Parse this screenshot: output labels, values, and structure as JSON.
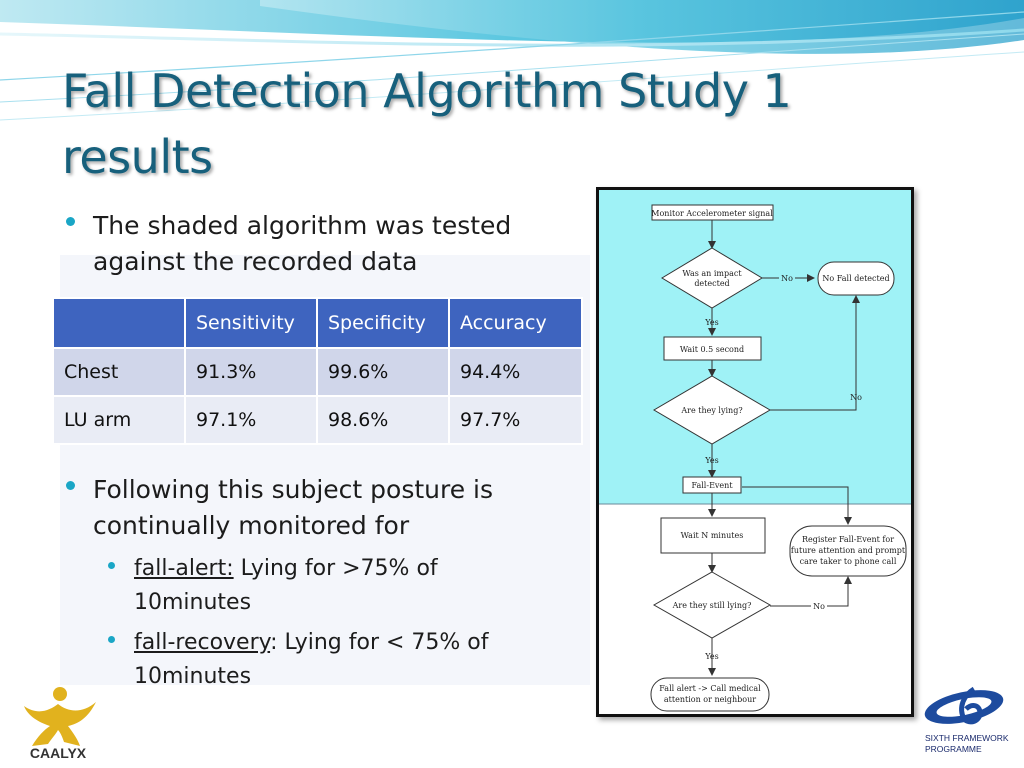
{
  "slide": {
    "title": "Fall Detection Algorithm Study 1 results",
    "bullets": [
      "The shaded algorithm was tested against the recorded data",
      "Following this subject posture is continually monitored for"
    ],
    "sub_bullets": [
      {
        "term": "fall-alert:",
        "rest": " Lying for >75% of 10minutes"
      },
      {
        "term": "fall-recovery",
        "rest": ": Lying for < 75% of 10minutes"
      }
    ]
  },
  "table": {
    "headers": [
      "",
      "Sensitivity",
      "Specificity",
      "Accuracy"
    ],
    "rows": [
      [
        "Chest",
        "91.3%",
        "99.6%",
        "94.4%"
      ],
      [
        "LU arm",
        "97.1%",
        "98.6%",
        "97.7%"
      ]
    ]
  },
  "flowchart": {
    "shaded_color": "#9ff2f6",
    "nodes": {
      "monitor": "Monitor Accelerometer signal",
      "impact_1": "Was an impact",
      "impact_2": "detected",
      "no_fall": "No Fall detected",
      "wait_half": "Wait 0.5 second",
      "lying": "Are they lying?",
      "fall_event": "Fall-Event",
      "wait_n": "Wait N minutes",
      "register_1": "Register Fall-Event for",
      "register_2": "future attention and prompt",
      "register_3": "care taker to phone call",
      "still_lying": "Are they still lying?",
      "alert_1": "Fall alert -> Call medical",
      "alert_2": "attention or neighbour"
    },
    "edges": {
      "no_1": "No",
      "yes_1": "Yes",
      "no_2": "No",
      "yes_2": "Yes",
      "no_3": "No",
      "yes_3": "Yes"
    }
  },
  "logos": {
    "left": "CAALYX",
    "right_1": "SIXTH FRAMEWORK",
    "right_2": "PROGRAMME"
  },
  "colors": {
    "title": "#17607c",
    "bullet": "#1aa6c6",
    "table_header": "#3e64bf",
    "table_row_1": "#d0d6ea",
    "table_row_2": "#e9ecf5"
  },
  "icons": {
    "left_logo": "caalyx-figure-icon",
    "right_logo": "sixth-framework-icon"
  }
}
